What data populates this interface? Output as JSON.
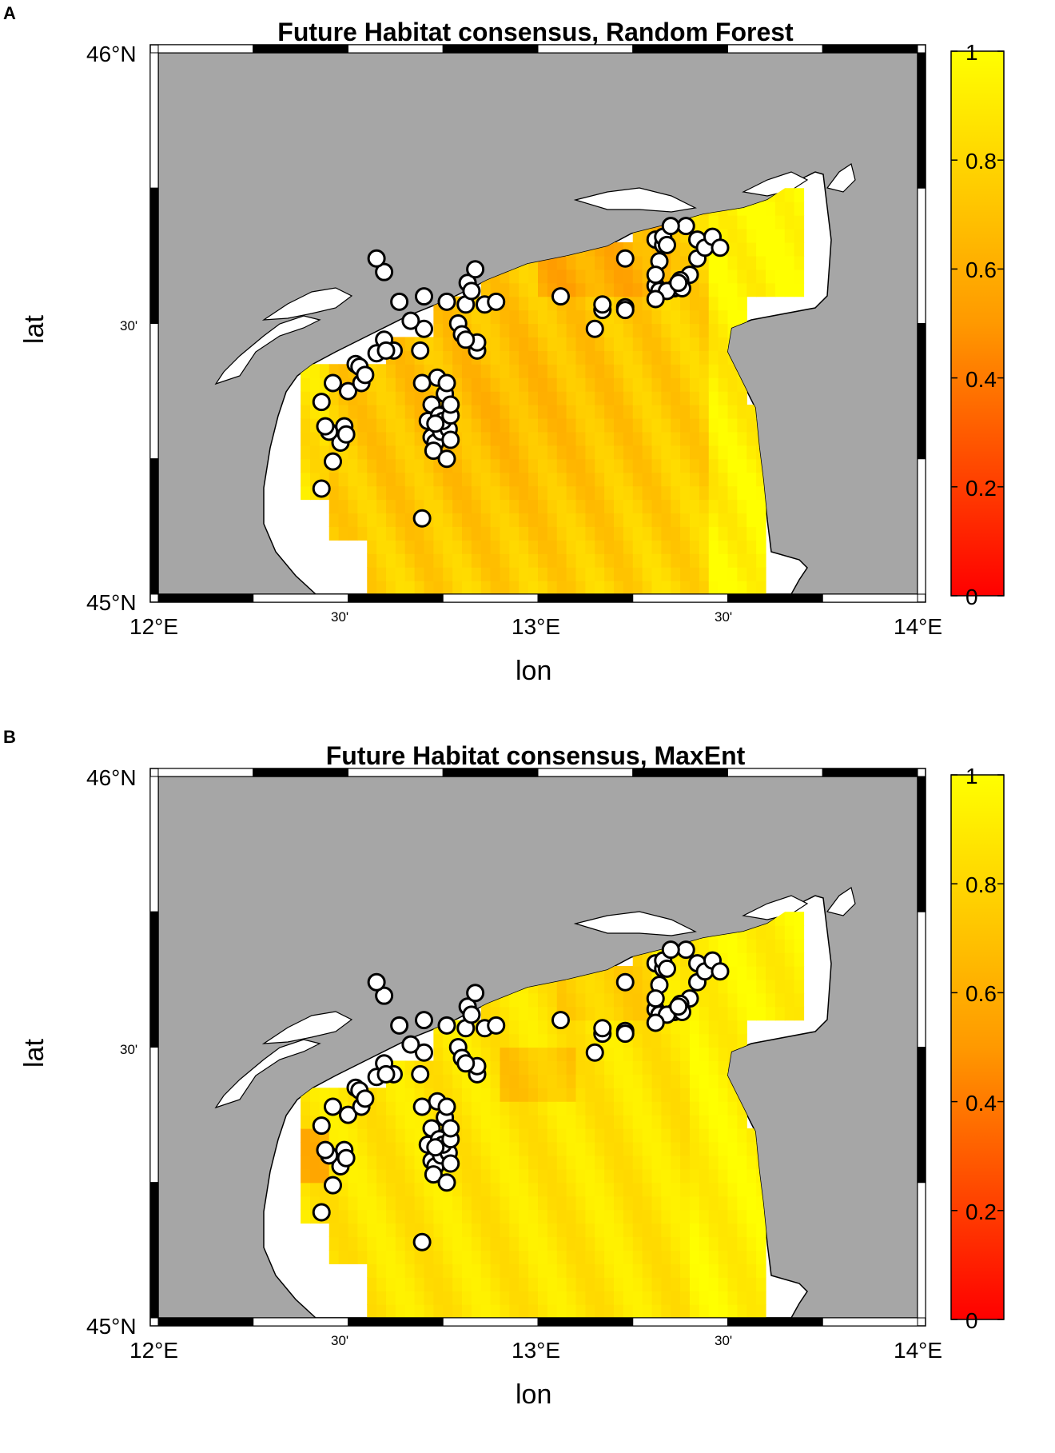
{
  "panels": [
    {
      "label": "A",
      "title": "Future Habitat consensus, Random Forest",
      "xlabel": "lon",
      "ylabel": "lat",
      "lat_ticks": [
        "46°N",
        "30'",
        "45°N"
      ],
      "lon_ticks": [
        "12°E",
        "30'",
        "13°E",
        "30'",
        "14°E"
      ],
      "colorbar_ticks": [
        "1",
        "0.8",
        "0.6",
        "0.4",
        "0.2",
        "0"
      ]
    },
    {
      "label": "B",
      "title": "Future Habitat consensus, MaxEnt",
      "xlabel": "lon",
      "ylabel": "lat",
      "lat_ticks": [
        "46°N",
        "30'",
        "45°N"
      ],
      "lon_ticks": [
        "12°E",
        "30'",
        "13°E",
        "30'",
        "14°E"
      ],
      "colorbar_ticks": [
        "1",
        "0.8",
        "0.6",
        "0.4",
        "0.2",
        "0"
      ]
    }
  ],
  "colors": {
    "land": "#a6a6a6",
    "sea": "#ffffff",
    "colormap_low": "#ff0000",
    "colormap_high": "#ffff00",
    "points": "#ffffff"
  },
  "chart_data": {
    "type": "heatmap",
    "xlim": [
      12.0,
      14.0
    ],
    "ylim": [
      45.0,
      46.0
    ],
    "colorbar_range": [
      0,
      1
    ],
    "occurrence_points": [
      [
        12.43,
        45.195
      ],
      [
        12.46,
        45.245
      ],
      [
        12.48,
        45.28
      ],
      [
        12.49,
        45.31
      ],
      [
        12.495,
        45.295
      ],
      [
        12.45,
        45.3
      ],
      [
        12.44,
        45.31
      ],
      [
        12.43,
        45.355
      ],
      [
        12.46,
        45.39
      ],
      [
        12.5,
        45.375
      ],
      [
        12.52,
        45.425
      ],
      [
        12.53,
        45.42
      ],
      [
        12.535,
        45.39
      ],
      [
        12.545,
        45.405
      ],
      [
        12.575,
        45.445
      ],
      [
        12.595,
        45.47
      ],
      [
        12.62,
        45.45
      ],
      [
        12.635,
        45.54
      ],
      [
        12.595,
        45.595
      ],
      [
        12.575,
        45.62
      ],
      [
        12.6,
        45.45
      ],
      [
        12.71,
        45.32
      ],
      [
        12.72,
        45.35
      ],
      [
        12.735,
        45.4
      ],
      [
        12.755,
        45.37
      ],
      [
        12.72,
        45.29
      ],
      [
        12.73,
        45.28
      ],
      [
        12.725,
        45.265
      ],
      [
        12.76,
        45.39
      ],
      [
        12.7,
        45.55
      ],
      [
        12.7,
        45.49
      ],
      [
        12.665,
        45.505
      ],
      [
        12.69,
        45.45
      ],
      [
        12.695,
        45.39
      ],
      [
        12.76,
        45.54
      ],
      [
        12.79,
        45.5
      ],
      [
        12.81,
        45.535
      ],
      [
        12.815,
        45.575
      ],
      [
        12.825,
        45.56
      ],
      [
        12.835,
        45.6
      ],
      [
        12.86,
        45.535
      ],
      [
        12.89,
        45.54
      ],
      [
        12.84,
        45.45
      ],
      [
        12.84,
        45.465
      ],
      [
        12.8,
        45.48
      ],
      [
        12.81,
        45.47
      ],
      [
        12.745,
        45.3
      ],
      [
        12.76,
        45.335
      ],
      [
        12.765,
        45.305
      ],
      [
        12.76,
        45.25
      ],
      [
        12.77,
        45.285
      ],
      [
        12.74,
        45.33
      ],
      [
        12.75,
        45.32
      ],
      [
        12.73,
        45.315
      ],
      [
        12.77,
        45.33
      ],
      [
        12.77,
        45.35
      ],
      [
        12.695,
        45.14
      ],
      [
        13.06,
        45.55
      ],
      [
        13.17,
        45.525
      ],
      [
        13.17,
        45.535
      ],
      [
        13.15,
        45.49
      ],
      [
        13.23,
        45.62
      ],
      [
        13.23,
        45.53
      ],
      [
        13.31,
        45.655
      ],
      [
        13.33,
        45.645
      ],
      [
        13.33,
        45.66
      ],
      [
        13.23,
        45.525
      ],
      [
        13.34,
        45.645
      ],
      [
        13.4,
        45.59
      ],
      [
        13.375,
        45.58
      ],
      [
        13.31,
        45.57
      ],
      [
        13.32,
        45.56
      ],
      [
        13.36,
        45.565
      ],
      [
        13.34,
        45.56
      ],
      [
        13.38,
        45.565
      ],
      [
        13.42,
        45.62
      ],
      [
        13.42,
        45.655
      ],
      [
        13.44,
        45.64
      ],
      [
        13.46,
        45.66
      ],
      [
        13.48,
        45.64
      ],
      [
        13.39,
        45.68
      ],
      [
        13.35,
        45.68
      ],
      [
        13.32,
        45.615
      ],
      [
        13.31,
        45.59
      ],
      [
        13.31,
        45.545
      ],
      [
        13.37,
        45.575
      ]
    ]
  }
}
